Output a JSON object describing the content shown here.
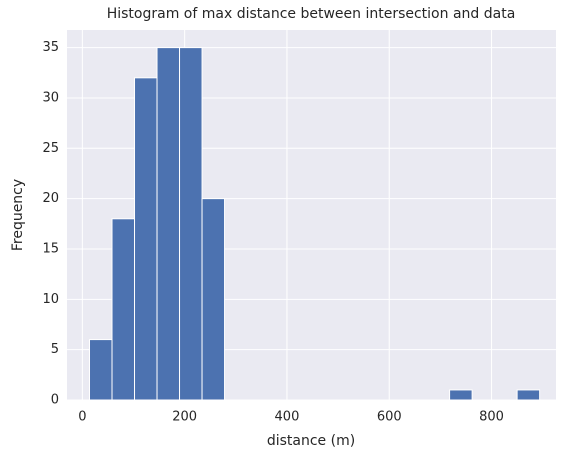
{
  "chart_data": {
    "type": "histogram",
    "title": "Histogram of max distance between intersection and data",
    "x_label": "distance (m)",
    "y_label": "Frequency",
    "bins": [
      14,
      58,
      102,
      146,
      190,
      234,
      278,
      322,
      366,
      410,
      454,
      498,
      542,
      586,
      630,
      674,
      718,
      762,
      806,
      850,
      894
    ],
    "counts": [
      6,
      18,
      32,
      35,
      35,
      20,
      0,
      0,
      0,
      0,
      0,
      0,
      0,
      0,
      0,
      0,
      1,
      0,
      0,
      1
    ],
    "color": "#4c72b0",
    "xlim": [
      -30,
      926
    ],
    "xticks": [
      0,
      200,
      400,
      600,
      800
    ],
    "ylim": [
      0,
      36.75
    ],
    "yticks": [
      0,
      5,
      10,
      15,
      20,
      25,
      30,
      35
    ],
    "grid": true
  }
}
